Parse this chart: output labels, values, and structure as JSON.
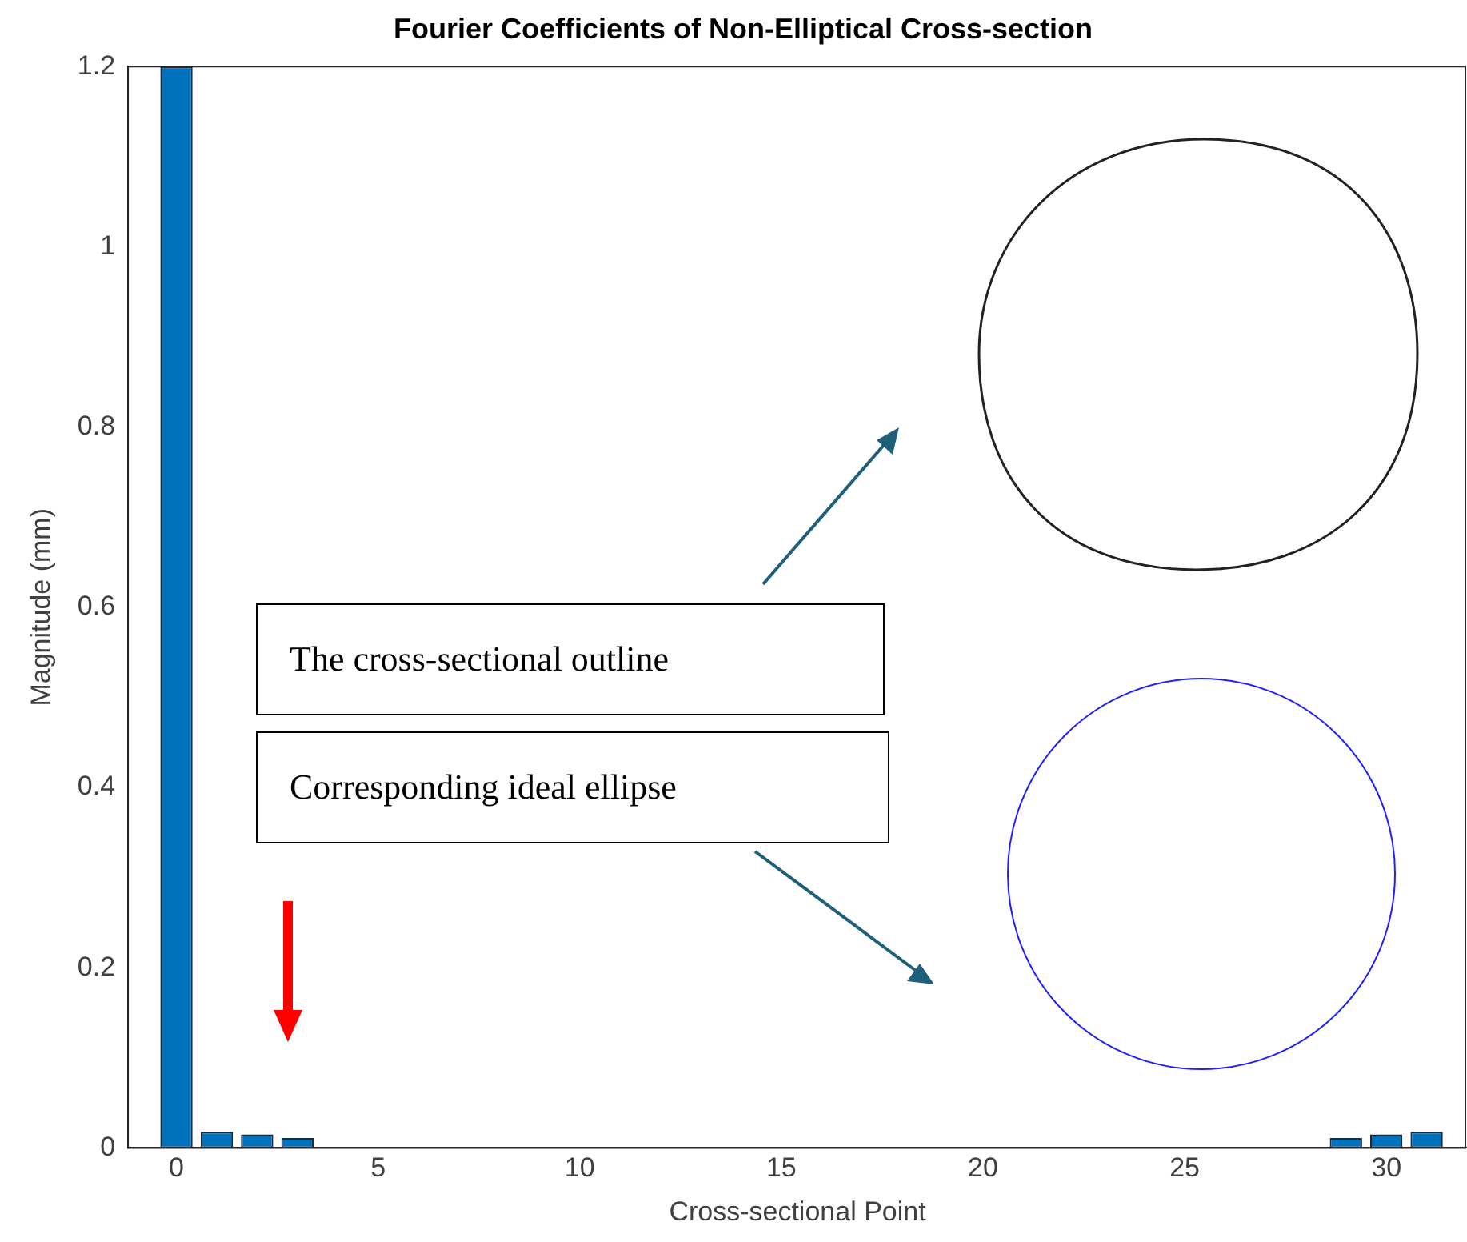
{
  "chart_data": {
    "type": "bar",
    "title": "Fourier Coefficients of Non-Elliptical Cross-section",
    "xlabel": "Cross-sectional Point",
    "ylabel": "Magnitude (mm)",
    "x": [
      0,
      1,
      2,
      3,
      4,
      5,
      6,
      7,
      8,
      9,
      10,
      11,
      12,
      13,
      14,
      15,
      16,
      17,
      18,
      19,
      20,
      21,
      22,
      23,
      24,
      25,
      26,
      27,
      28,
      29,
      30,
      31
    ],
    "values": [
      1.2,
      0.018,
      0.015,
      0.011,
      0,
      0,
      0,
      0,
      0,
      0,
      0,
      0,
      0,
      0,
      0,
      0,
      0,
      0,
      0,
      0,
      0,
      0,
      0,
      0,
      0,
      0,
      0,
      0,
      0,
      0.011,
      0.015,
      0.018
    ],
    "color": "#0072bd",
    "xlim": [
      -1.2,
      32
    ],
    "xticks": [
      0,
      5,
      10,
      15,
      20,
      25,
      30
    ],
    "ylim": [
      0,
      1.2
    ],
    "yticks": [
      0,
      0.2,
      0.4,
      0.6,
      0.8,
      1,
      1.2
    ],
    "grid": false,
    "legend": false,
    "annotations": [
      "The cross-sectional outline",
      "Corresponding ideal ellipse"
    ]
  }
}
